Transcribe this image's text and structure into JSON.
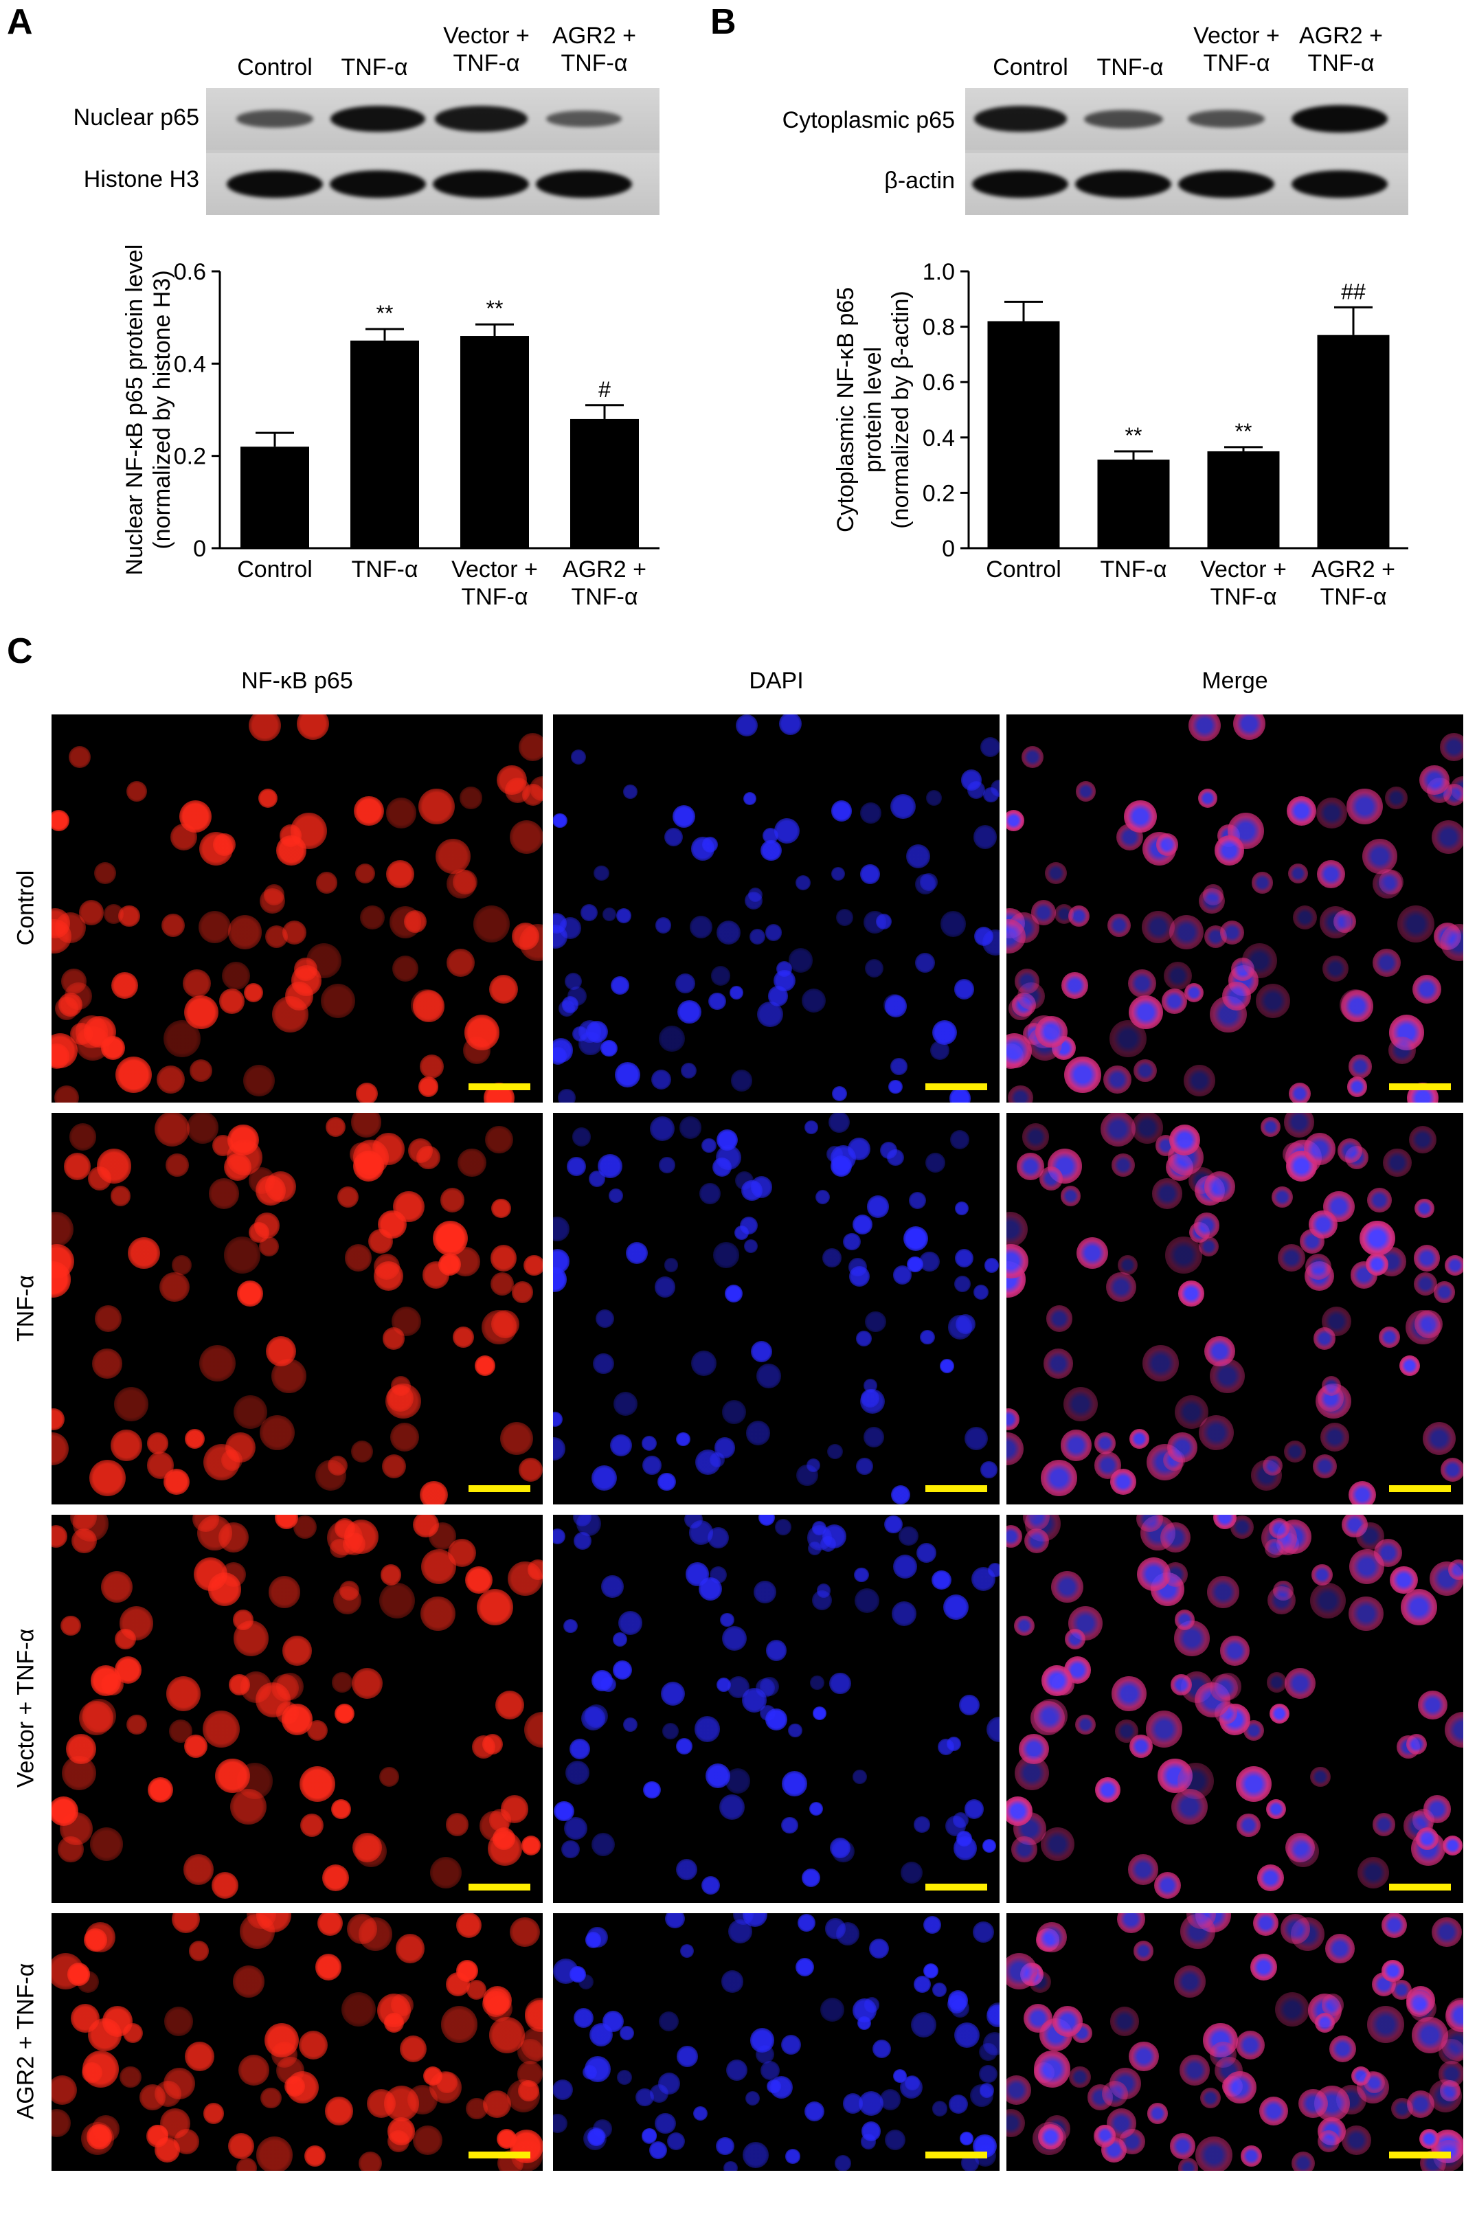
{
  "panels": {
    "a_letter": "A",
    "b_letter": "B",
    "c_letter": "C"
  },
  "blot_a": {
    "lanes": [
      "Control",
      "TNF-α",
      "Vector +\nTNF-α",
      "AGR2 +\nTNF-α"
    ],
    "rows": [
      "Nuclear p65",
      "Histone H3"
    ],
    "band_intensity": [
      [
        0.45,
        0.95,
        0.9,
        0.4
      ],
      [
        1.0,
        1.0,
        1.0,
        1.0
      ]
    ]
  },
  "blot_b": {
    "lanes": [
      "Control",
      "TNF-α",
      "Vector +\nTNF-α",
      "AGR2 +\nTNF-α"
    ],
    "rows": [
      "Cytoplasmic p65",
      "β-actin"
    ],
    "band_intensity": [
      [
        0.9,
        0.5,
        0.45,
        1.0
      ],
      [
        1.0,
        1.0,
        1.0,
        1.0
      ]
    ]
  },
  "chart_data": [
    {
      "type": "bar",
      "categories": [
        "Control",
        "TNF-α",
        "Vector +\nTNF-α",
        "AGR2 +\nTNF-α"
      ],
      "values": [
        0.22,
        0.45,
        0.46,
        0.28
      ],
      "errors": [
        0.03,
        0.025,
        0.025,
        0.03
      ],
      "annotations": [
        "",
        "**",
        "**",
        "#"
      ],
      "ylabel": "Nuclear NF-κB p65 protein level\n(normalized by histone H3)",
      "ylim": [
        0,
        0.6
      ],
      "yticks": [
        "0",
        "0.2",
        "0.4",
        "0.6"
      ],
      "ytick_values": [
        0,
        0.2,
        0.4,
        0.6
      ],
      "bar_color": "#000000",
      "grid": false
    },
    {
      "type": "bar",
      "categories": [
        "Control",
        "TNF-α",
        "Vector +\nTNF-α",
        "AGR2 +\nTNF-α"
      ],
      "values": [
        0.82,
        0.32,
        0.35,
        0.77
      ],
      "errors": [
        0.07,
        0.03,
        0.015,
        0.1
      ],
      "annotations": [
        "",
        "**",
        "**",
        "##"
      ],
      "ylabel": "Cytoplasmic NF-κB p65\nprotein level\n(normalized by β-actin)",
      "ylim": [
        0,
        1.0
      ],
      "yticks": [
        "0",
        "0.2",
        "0.4",
        "0.6",
        "0.8",
        "1.0"
      ],
      "ytick_values": [
        0,
        0.2,
        0.4,
        0.6,
        0.8,
        1.0
      ],
      "bar_color": "#000000",
      "grid": false
    }
  ],
  "microscopy": {
    "columns": [
      "NF-κB p65",
      "DAPI",
      "Merge"
    ],
    "rows": [
      "Control",
      "TNF-α",
      "Vector + TNF-α",
      "AGR2 + TNF-α"
    ],
    "channel_colors": [
      "#ff2a1a",
      "#2a2aff",
      "#d3308a"
    ],
    "scalebar_color": "#ffee00"
  }
}
